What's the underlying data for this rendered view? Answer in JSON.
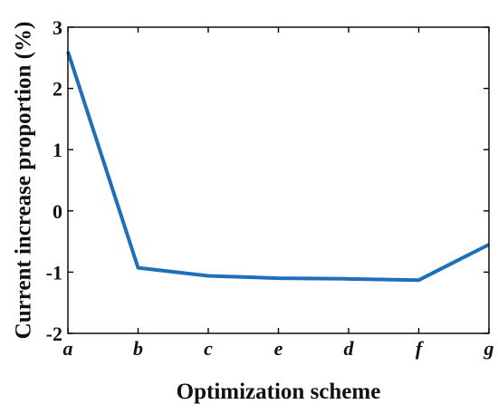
{
  "chart_data": {
    "type": "line",
    "categories": [
      "a",
      "b",
      "c",
      "e",
      "d",
      "f",
      "g"
    ],
    "series": [
      {
        "values": [
          2.6,
          -0.93,
          -1.06,
          -1.1,
          -1.11,
          -1.13,
          -0.55
        ],
        "color": "#1f6fb8"
      }
    ],
    "xlabel": "Optimization scheme",
    "ylabel": "Current increase proportion (%)",
    "ylim": [
      -2,
      3
    ],
    "yticks": [
      -2,
      -1,
      0,
      1,
      2,
      3
    ],
    "grid": false,
    "legend": "none"
  }
}
